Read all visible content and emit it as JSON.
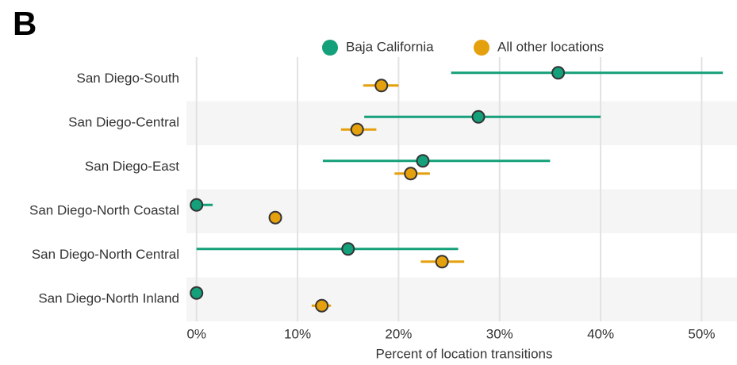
{
  "chart_data": {
    "type": "dot-range",
    "panel_label": "B",
    "x_label": "Percent of location transitions",
    "categories": [
      "San Diego-South",
      "San Diego-Central",
      "San Diego-East",
      "San Diego-North Coastal",
      "San Diego-North Central",
      "San Diego-North Inland"
    ],
    "series": [
      {
        "name": "Baja California",
        "color": "#14a07a",
        "values": [
          35.8,
          27.9,
          22.4,
          0,
          15.0,
          0
        ],
        "lower": [
          25.2,
          16.6,
          12.5,
          0,
          0,
          0
        ],
        "upper": [
          52.1,
          40.0,
          35.0,
          1.6,
          25.9,
          0
        ]
      },
      {
        "name": "All other locations",
        "color": "#e5a00d",
        "values": [
          18.3,
          15.9,
          21.2,
          7.8,
          24.3,
          12.4
        ],
        "lower": [
          16.5,
          14.3,
          19.6,
          7.8,
          22.2,
          11.4
        ],
        "upper": [
          20.0,
          17.8,
          23.1,
          7.8,
          26.5,
          13.3
        ]
      }
    ],
    "xlim": [
      -1,
      53.5
    ],
    "xticks": [
      {
        "value": 0,
        "label": "0%"
      },
      {
        "value": 10,
        "label": "10%"
      },
      {
        "value": 20,
        "label": "20%"
      },
      {
        "value": 30,
        "label": "30%"
      },
      {
        "value": 40,
        "label": "40%"
      },
      {
        "value": 50,
        "label": "50%"
      }
    ],
    "grid": true
  }
}
